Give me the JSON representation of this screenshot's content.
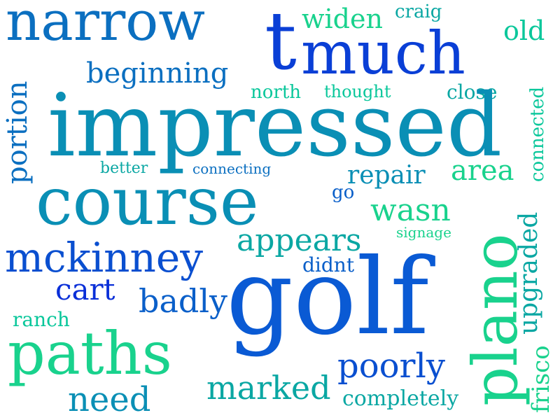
{
  "words": [
    {
      "text": "narrow",
      "color": "#0b6fc0"
    },
    {
      "text": "t",
      "color": "#0a3fd6"
    },
    {
      "text": "much",
      "color": "#0a3fd6"
    },
    {
      "text": "widen",
      "color": "#19d28d"
    },
    {
      "text": "craig",
      "color": "#0aa7a3"
    },
    {
      "text": "old",
      "color": "#0ac79b"
    },
    {
      "text": "beginning",
      "color": "#0b6fc0"
    },
    {
      "text": "north",
      "color": "#0ac79b"
    },
    {
      "text": "thought",
      "color": "#0ac79b"
    },
    {
      "text": "close",
      "color": "#0aa7a3"
    },
    {
      "text": "connected",
      "color": "#0ac79b"
    },
    {
      "text": "portion",
      "color": "#0b6fc0"
    },
    {
      "text": "impressed",
      "color": "#0a8fb5"
    },
    {
      "text": "better",
      "color": "#0aa7a3"
    },
    {
      "text": "connecting",
      "color": "#0b6fc0"
    },
    {
      "text": "area",
      "color": "#19d28d"
    },
    {
      "text": "repair",
      "color": "#0a8fb5"
    },
    {
      "text": "course",
      "color": "#0a8fb5"
    },
    {
      "text": "go",
      "color": "#0a5fc9"
    },
    {
      "text": "wasn",
      "color": "#19d28d"
    },
    {
      "text": "upgraded",
      "color": "#0aa7a3"
    },
    {
      "text": "signage",
      "color": "#19d28d"
    },
    {
      "text": "plano",
      "color": "#19d28d"
    },
    {
      "text": "appears",
      "color": "#0aa7a3"
    },
    {
      "text": "mckinney",
      "color": "#0a4fd0"
    },
    {
      "text": "didnt",
      "color": "#0a5fc9"
    },
    {
      "text": "cart",
      "color": "#0a2fd8"
    },
    {
      "text": "badly",
      "color": "#0a5fc9"
    },
    {
      "text": "golf",
      "color": "#0a5ad4"
    },
    {
      "text": "ranch",
      "color": "#0ac79b"
    },
    {
      "text": "paths",
      "color": "#19d28d"
    },
    {
      "text": "poorly",
      "color": "#0a4fd0"
    },
    {
      "text": "marked",
      "color": "#0aa7a3"
    },
    {
      "text": "frisco",
      "color": "#19d28d"
    },
    {
      "text": "need",
      "color": "#0a8fb5"
    },
    {
      "text": "completely",
      "color": "#0aa7a3"
    }
  ]
}
